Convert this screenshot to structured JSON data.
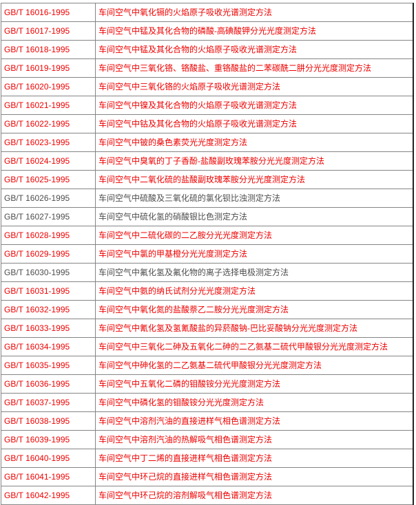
{
  "table": {
    "colors": {
      "red_text": "#ee0000",
      "gray_text": "#4d4d4d",
      "border": "#848484",
      "outer_right_border": "#222222",
      "background": "#ffffff"
    },
    "rows": [
      {
        "code": "GB/T 16016-1995",
        "title": "车间空气中氧化镉的火焰原子吸收光谱测定方法",
        "color": "red"
      },
      {
        "code": "GB/T 16017-1995",
        "title": "车间空气中锰及其化合物的磷酸-高碘酸钾分光光度测定方法",
        "color": "red"
      },
      {
        "code": "GB/T 16018-1995",
        "title": "车间空气中锰及其化合物的火焰原子吸收光谱测定方法",
        "color": "red"
      },
      {
        "code": "GB/T 16019-1995",
        "title": "车间空气中三氧化铬、铬酸盐、重铬酸盐的二苯碳酰二肼分光光度测定方法",
        "color": "red"
      },
      {
        "code": "GB/T 16020-1995",
        "title": "车间空气中三氧化铬的火焰原子吸收光谱测定方法",
        "color": "red"
      },
      {
        "code": "GB/T 16021-1995",
        "title": "车间空气中镍及其化合物的火焰原子吸收光谱测定方法",
        "color": "red"
      },
      {
        "code": "GB/T 16022-1995",
        "title": "车间空气中钴及其化合物的火焰原子吸收光谱测定方法",
        "color": "red"
      },
      {
        "code": "GB/T 16023-1995",
        "title": "车间空气中铍的桑色素荧光光度测定方法",
        "color": "red"
      },
      {
        "code": "GB/T 16024-1995",
        "title": "车间空气中臭氧的丁子香酚-盐酸副玫瑰苯胺分光光度测定方法",
        "color": "red"
      },
      {
        "code": "GB/T 16025-1995",
        "title": "车间空气中二氧化硫的盐酸副玫瑰苯胺分光光度测定方法",
        "color": "red"
      },
      {
        "code": "GB/T 16026-1995",
        "title": "车间空气中硫酸及三氧化硫的氯化钡比浊测定方法",
        "color": "gray"
      },
      {
        "code": "GB/T 16027-1995",
        "title": "车间空气中硫化氢的硝酸银比色测定方法",
        "color": "gray"
      },
      {
        "code": "GB/T 16028-1995",
        "title": "车间空气中二硫化碳的二乙胺分光光度测定方法",
        "color": "red"
      },
      {
        "code": "GB/T 16029-1995",
        "title": "车间空气中氯的甲基橙分光光度测定方法",
        "color": "red"
      },
      {
        "code": "GB/T 16030-1995",
        "title": "车间空气中氟化氢及氟化物的离子选择电极测定方法",
        "color": "gray"
      },
      {
        "code": "GB/T 16031-1995",
        "title": "车间空气中氨的纳氏试剂分光光度测定方法",
        "color": "red"
      },
      {
        "code": "GB/T 16032-1995",
        "title": "车间空气中氧化氮的盐酸萘乙二胺分光光度测定方法",
        "color": "red"
      },
      {
        "code": "GB/T 16033-1995",
        "title": "车间空气中氰化氢及氢氰酸盐的异菸酸钠-巴比妥酸钠分光光度测定方法",
        "color": "red"
      },
      {
        "code": "GB/T 16034-1995",
        "title": "车间空气中三氧化二砷及五氧化二砷的二乙氨基二硫代甲酸银分光光度测定方法",
        "color": "red"
      },
      {
        "code": "GB/T 16035-1995",
        "title": "车间空气中砷化氢的二乙氨基二硫代甲酸银分光光度测定方法",
        "color": "red"
      },
      {
        "code": "GB/T 16036-1995",
        "title": "车间空气中五氧化二磷的钼酸铵分光光度测定方法",
        "color": "red"
      },
      {
        "code": "GB/T 16037-1995",
        "title": "车间空气中磷化氢的钼酸铵分光光度测定方法",
        "color": "red"
      },
      {
        "code": "GB/T 16038-1995",
        "title": "车间空气中溶剂汽油的直接进样气相色谱测定方法",
        "color": "red"
      },
      {
        "code": "GB/T 16039-1995",
        "title": "车间空气中溶剂汽油的热解吸气相色谱测定方法",
        "color": "red"
      },
      {
        "code": "GB/T 16040-1995",
        "title": "车间空气中丁二烯的直接进样气相色谱测定方法",
        "color": "red"
      },
      {
        "code": "GB/T 16041-1995",
        "title": "车间空气中环己烷的直接进样气相色谱测定方法",
        "color": "red"
      },
      {
        "code": "GB/T 16042-1995",
        "title": "车间空气中环己烷的溶剂解吸气相色谱测定方法",
        "color": "red"
      }
    ]
  }
}
